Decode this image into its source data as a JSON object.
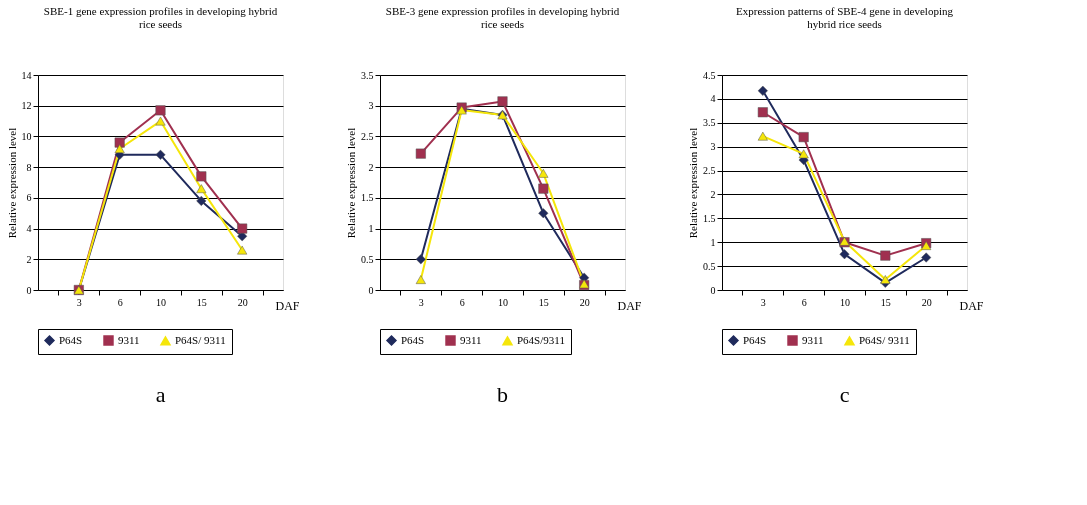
{
  "chart_data": [
    {
      "type": "line",
      "title": "SBE-1 gene expression profiles in developing hybrid rice seeds",
      "xlabel": "DAF",
      "ylabel": "Relative expression level",
      "categories": [
        "3",
        "6",
        "10",
        "15",
        "20"
      ],
      "ylim": [
        0,
        14
      ],
      "yticks": [
        0,
        2,
        4,
        6,
        8,
        10,
        12,
        14
      ],
      "grid": "y",
      "legend": "bottom",
      "annotations": [
        "a"
      ],
      "series": [
        {
          "name": "P64S",
          "color": "#1f2a5c",
          "marker": "diamond",
          "values": [
            0,
            8.8,
            8.8,
            5.8,
            3.5
          ]
        },
        {
          "name": "9311",
          "color": "#a0304f",
          "marker": "square",
          "values": [
            0,
            9.6,
            11.7,
            7.4,
            4.0
          ]
        },
        {
          "name": "P64S/ 9311",
          "color": "#f5e60a",
          "marker": "triangle",
          "values": [
            0,
            9.2,
            11.0,
            6.6,
            2.6
          ]
        }
      ]
    },
    {
      "type": "line",
      "title": "SBE-3 gene expression profiles in developing hybrid rice seeds",
      "xlabel": "DAF",
      "ylabel": "Relative expression level",
      "categories": [
        "3",
        "6",
        "10",
        "15",
        "20"
      ],
      "ylim": [
        0,
        3.5
      ],
      "yticks": [
        0,
        0.5,
        1,
        1.5,
        2,
        2.5,
        3,
        3.5
      ],
      "grid": "y",
      "legend": "bottom",
      "annotations": [
        "b"
      ],
      "series": [
        {
          "name": "P64S",
          "color": "#1f2a5c",
          "marker": "diamond",
          "values": [
            0.5,
            2.95,
            2.85,
            1.25,
            0.2
          ]
        },
        {
          "name": "9311",
          "color": "#a0304f",
          "marker": "square",
          "values": [
            2.22,
            2.97,
            3.07,
            1.65,
            0.08
          ]
        },
        {
          "name": "P64S/9311",
          "color": "#f5e60a",
          "marker": "triangle",
          "values": [
            0.17,
            2.93,
            2.85,
            1.9,
            0.1
          ]
        }
      ]
    },
    {
      "type": "line",
      "title": "Expression patterns of SBE-4 gene in developing hybrid rice seeds",
      "xlabel": "DAF",
      "ylabel": "Relative expression level",
      "categories": [
        "3",
        "6",
        "10",
        "15",
        "20"
      ],
      "ylim": [
        0,
        4.5
      ],
      "yticks": [
        0,
        0.5,
        1,
        1.5,
        2,
        2.5,
        3,
        3.5,
        4,
        4.5
      ],
      "grid": "y",
      "legend": "bottom",
      "annotations": [
        "c"
      ],
      "series": [
        {
          "name": "P64S",
          "color": "#1f2a5c",
          "marker": "diamond",
          "values": [
            4.17,
            2.72,
            0.75,
            0.15,
            0.68
          ]
        },
        {
          "name": "9311",
          "color": "#a0304f",
          "marker": "square",
          "values": [
            3.72,
            3.2,
            1.0,
            0.72,
            0.98
          ]
        },
        {
          "name": "P64S/ 9311",
          "color": "#f5e60a",
          "marker": "triangle",
          "values": [
            3.22,
            2.85,
            1.02,
            0.22,
            0.93
          ]
        }
      ]
    }
  ]
}
